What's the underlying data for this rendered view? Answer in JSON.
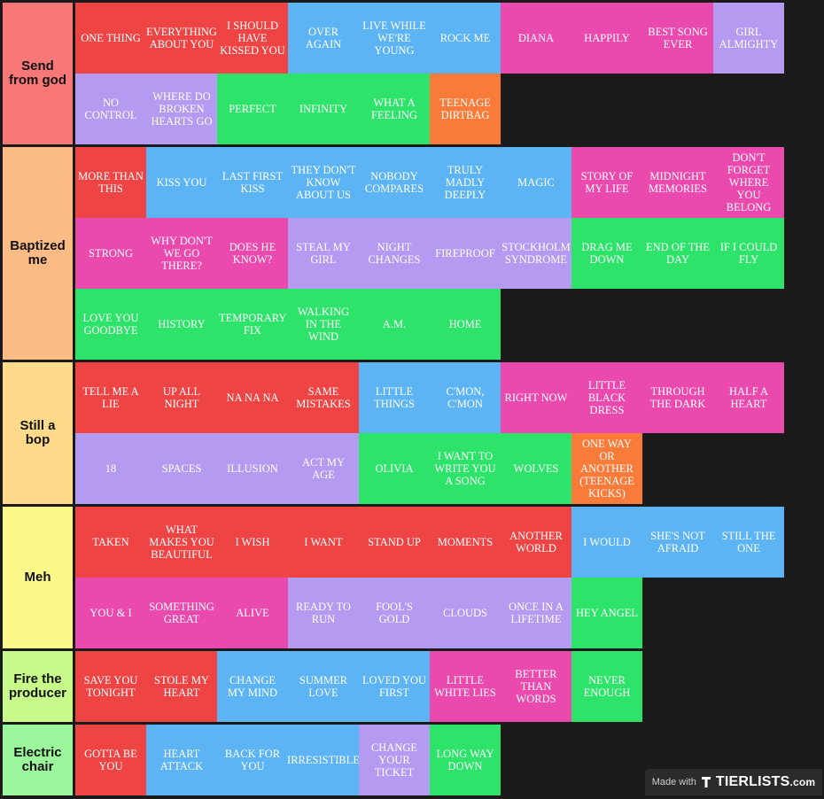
{
  "tiers": [
    {
      "label": "Send from god",
      "color": "#f97777",
      "items": [
        {
          "text": "ONE THING",
          "color": "red"
        },
        {
          "text": "EVERYTHING ABOUT YOU",
          "color": "red"
        },
        {
          "text": "I SHOULD HAVE KISSED YOU",
          "color": "red"
        },
        {
          "text": "OVER AGAIN",
          "color": "blue"
        },
        {
          "text": "LIVE WHILE WE'RE YOUNG",
          "color": "blue"
        },
        {
          "text": "ROCK ME",
          "color": "blue"
        },
        {
          "text": "DIANA",
          "color": "pink"
        },
        {
          "text": "HAPPILY",
          "color": "pink"
        },
        {
          "text": "BEST SONG EVER",
          "color": "pink"
        },
        {
          "text": "GIRL ALMIGHTY",
          "color": "lav"
        },
        {
          "text": "NO CONTROL",
          "color": "lav"
        },
        {
          "text": "WHERE DO BROKEN HEARTS GO",
          "color": "lav"
        },
        {
          "text": "PERFECT",
          "color": "green"
        },
        {
          "text": "INFINITY",
          "color": "green"
        },
        {
          "text": "WHAT A FEELING",
          "color": "green"
        },
        {
          "text": "TEENAGE DIRTBAG",
          "color": "orange"
        }
      ]
    },
    {
      "label": "Baptized me",
      "color": "#fdbb86",
      "items": [
        {
          "text": "MORE THAN THIS",
          "color": "red"
        },
        {
          "text": "KISS YOU",
          "color": "blue"
        },
        {
          "text": "LAST FIRST KISS",
          "color": "blue"
        },
        {
          "text": "THEY DON'T KNOW ABOUT US",
          "color": "blue"
        },
        {
          "text": "NOBODY COMPARES",
          "color": "blue"
        },
        {
          "text": "TRULY MADLY DEEPLY",
          "color": "blue"
        },
        {
          "text": "MAGIC",
          "color": "blue"
        },
        {
          "text": "STORY OF MY LIFE",
          "color": "pink"
        },
        {
          "text": "MIDNIGHT MEMORIES",
          "color": "pink"
        },
        {
          "text": "DON'T FORGET WHERE YOU BELONG",
          "color": "pink"
        },
        {
          "text": "STRONG",
          "color": "pink"
        },
        {
          "text": "WHY DON'T WE GO THERE?",
          "color": "pink"
        },
        {
          "text": "DOES HE KNOW?",
          "color": "pink"
        },
        {
          "text": "STEAL MY GIRL",
          "color": "lav"
        },
        {
          "text": "NIGHT CHANGES",
          "color": "lav"
        },
        {
          "text": "FIREPROOF",
          "color": "lav"
        },
        {
          "text": "STOCKHOLM SYNDROME",
          "color": "lav"
        },
        {
          "text": "DRAG ME DOWN",
          "color": "green"
        },
        {
          "text": "END OF THE DAY",
          "color": "green"
        },
        {
          "text": "IF I COULD FLY",
          "color": "green"
        },
        {
          "text": "LOVE YOU GOODBYE",
          "color": "green"
        },
        {
          "text": "HISTORY",
          "color": "green"
        },
        {
          "text": "TEMPORARY FIX",
          "color": "green"
        },
        {
          "text": "WALKING IN THE WIND",
          "color": "green"
        },
        {
          "text": "A.M.",
          "color": "green"
        },
        {
          "text": "HOME",
          "color": "green"
        }
      ]
    },
    {
      "label": "Still a bop",
      "color": "#fddb8a",
      "items": [
        {
          "text": "TELL ME A LIE",
          "color": "red"
        },
        {
          "text": "UP ALL NIGHT",
          "color": "red"
        },
        {
          "text": "NA NA NA",
          "color": "red"
        },
        {
          "text": "SAME MISTAKES",
          "color": "red"
        },
        {
          "text": "LITTLE THINGS",
          "color": "blue"
        },
        {
          "text": "C'MON, C'MON",
          "color": "blue"
        },
        {
          "text": "RIGHT NOW",
          "color": "pink"
        },
        {
          "text": "LITTLE BLACK DRESS",
          "color": "pink"
        },
        {
          "text": "THROUGH THE DARK",
          "color": "pink"
        },
        {
          "text": "HALF A HEART",
          "color": "pink"
        },
        {
          "text": "18",
          "color": "lav"
        },
        {
          "text": "SPACES",
          "color": "lav"
        },
        {
          "text": "ILLUSION",
          "color": "lav"
        },
        {
          "text": "ACT MY AGE",
          "color": "lav"
        },
        {
          "text": "OLIVIA",
          "color": "green"
        },
        {
          "text": "I WANT TO WRITE YOU A SONG",
          "color": "green"
        },
        {
          "text": "WOLVES",
          "color": "green"
        },
        {
          "text": "ONE WAY OR ANOTHER (TEENAGE KICKS)",
          "color": "orange"
        }
      ]
    },
    {
      "label": "Meh",
      "color": "#fdf88a",
      "items": [
        {
          "text": "TAKEN",
          "color": "red"
        },
        {
          "text": "WHAT MAKES YOU BEAUTIFUL",
          "color": "red"
        },
        {
          "text": "I WISH",
          "color": "red"
        },
        {
          "text": "I WANT",
          "color": "red"
        },
        {
          "text": "STAND UP",
          "color": "red"
        },
        {
          "text": "MOMENTS",
          "color": "red"
        },
        {
          "text": "ANOTHER WORLD",
          "color": "red"
        },
        {
          "text": "I WOULD",
          "color": "blue"
        },
        {
          "text": "SHE'S NOT AFRAID",
          "color": "blue"
        },
        {
          "text": "STILL THE ONE",
          "color": "blue"
        },
        {
          "text": "YOU & I",
          "color": "pink"
        },
        {
          "text": "SOMETHING GREAT",
          "color": "pink"
        },
        {
          "text": "ALIVE",
          "color": "pink"
        },
        {
          "text": "READY TO RUN",
          "color": "lav"
        },
        {
          "text": "FOOL'S GOLD",
          "color": "lav"
        },
        {
          "text": "CLOUDS",
          "color": "lav"
        },
        {
          "text": "ONCE IN A LIFETIME",
          "color": "lav"
        },
        {
          "text": "HEY ANGEL",
          "color": "green"
        }
      ]
    },
    {
      "label": "Fire the producer",
      "color": "#c8fa8a",
      "items": [
        {
          "text": "SAVE YOU TONIGHT",
          "color": "red"
        },
        {
          "text": "STOLE MY HEART",
          "color": "red"
        },
        {
          "text": "CHANGE MY MIND",
          "color": "blue"
        },
        {
          "text": "SUMMER LOVE",
          "color": "blue"
        },
        {
          "text": "LOVED YOU FIRST",
          "color": "blue"
        },
        {
          "text": "LITTLE WHITE LIES",
          "color": "pink"
        },
        {
          "text": "BETTER THAN WORDS",
          "color": "pink"
        },
        {
          "text": "NEVER ENOUGH",
          "color": "green"
        }
      ]
    },
    {
      "label": "Electric chair",
      "color": "#9cf79c",
      "items": [
        {
          "text": "GOTTA BE YOU",
          "color": "red"
        },
        {
          "text": "HEART ATTACK",
          "color": "blue"
        },
        {
          "text": "BACK FOR YOU",
          "color": "blue"
        },
        {
          "text": "IRRESISTIBLE",
          "color": "blue"
        },
        {
          "text": "CHANGE YOUR TICKET",
          "color": "lav"
        },
        {
          "text": "LONG WAY DOWN",
          "color": "green"
        }
      ]
    }
  ],
  "watermark": {
    "made_with": "Made with",
    "brand": "TIERLISTS",
    "suffix": ".com"
  }
}
